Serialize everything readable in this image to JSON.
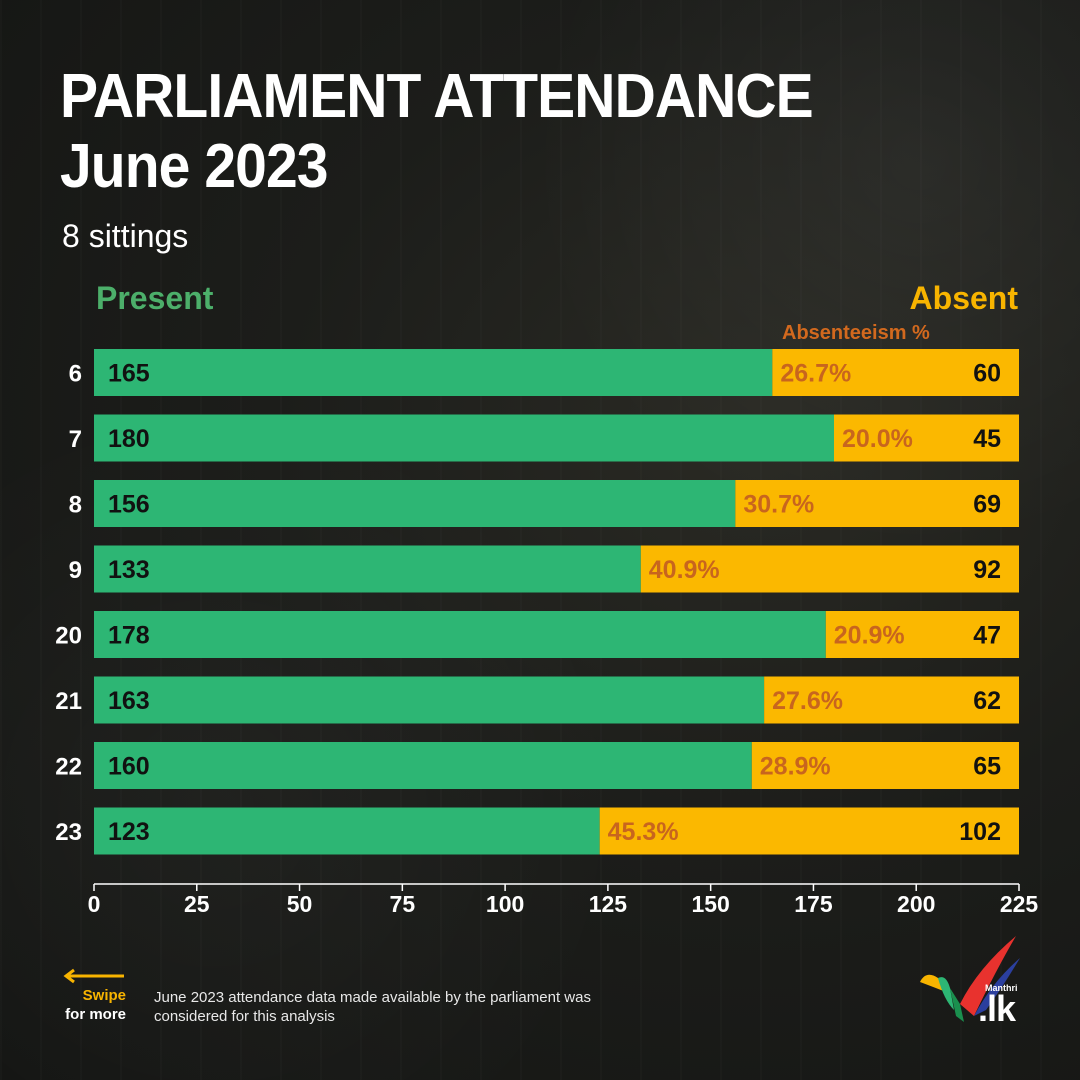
{
  "header": {
    "title_line1": "PARLIAMENT ATTENDANCE",
    "title_line2": "June 2023",
    "subtitle": "8 sittings"
  },
  "legend": {
    "present": "Present",
    "absent": "Absent",
    "absenteeism": "Absenteeism %"
  },
  "colors": {
    "present": "#2db674",
    "absent": "#fbb800",
    "absent_legend": "#f8b400",
    "present_legend": "#4caf6a",
    "percent": "#c8651e"
  },
  "chart_data": {
    "type": "bar",
    "orientation": "horizontal-stacked",
    "categories": [
      "6",
      "7",
      "8",
      "9",
      "20",
      "21",
      "22",
      "23"
    ],
    "series": [
      {
        "name": "Present",
        "values": [
          165,
          180,
          156,
          133,
          178,
          163,
          160,
          123
        ]
      },
      {
        "name": "Absent",
        "values": [
          60,
          45,
          69,
          92,
          47,
          62,
          65,
          102
        ]
      }
    ],
    "absenteeism_pct": [
      "26.7%",
      "20.0%",
      "30.7%",
      "40.9%",
      "20.9%",
      "27.6%",
      "28.9%",
      "45.3%"
    ],
    "xlim": [
      0,
      225
    ],
    "xticks": [
      0,
      25,
      50,
      75,
      100,
      125,
      150,
      175,
      200,
      225
    ],
    "legend_position": "top"
  },
  "footer": {
    "swipe_line1": "Swipe",
    "swipe_line2": "for more",
    "note": "June 2023 attendance data made available by the parliament was considered for this analysis",
    "logo_small": "Manthri",
    "logo_text": ".lk"
  }
}
